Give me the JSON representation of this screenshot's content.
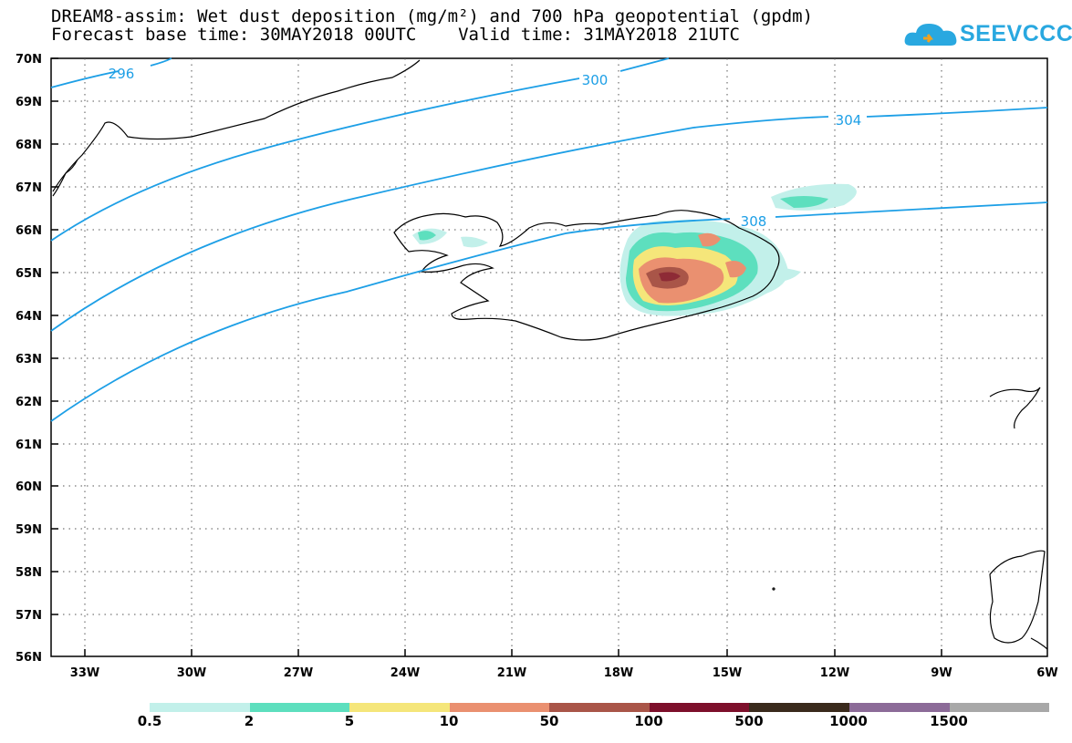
{
  "title": {
    "line1": "DREAM8-assim: Wet dust deposition (mg/m²) and 700 hPa geopotential (gpdm)",
    "line2": "Forecast base time: 30MAY2018 00UTC    Valid time: 31MAY2018 21UTC"
  },
  "logo": {
    "text": "SEEVCCC",
    "icon": "cloud-icon",
    "color": "#29a8e0"
  },
  "axes": {
    "lat_labels": [
      "70N",
      "69N",
      "68N",
      "67N",
      "66N",
      "65N",
      "64N",
      "63N",
      "62N",
      "61N",
      "60N",
      "59N",
      "58N",
      "57N",
      "56N"
    ],
    "lon_labels": [
      "33W",
      "30W",
      "27W",
      "24W",
      "21W",
      "18W",
      "15W",
      "12W",
      "9W",
      "6W"
    ]
  },
  "contours": {
    "color": "#1d9fe6",
    "labels": [
      "296",
      "300",
      "304",
      "308"
    ]
  },
  "legend": {
    "colors": [
      "#c2f0ea",
      "#5ddfbe",
      "#f5e67a",
      "#ea9070",
      "#a95548",
      "#7d0f2b",
      "#3a2a1c",
      "#8c6b98",
      "#a8a8a8"
    ],
    "labels": [
      "0.5",
      "2",
      "5",
      "10",
      "50",
      "100",
      "500",
      "1000",
      "1500"
    ]
  }
}
